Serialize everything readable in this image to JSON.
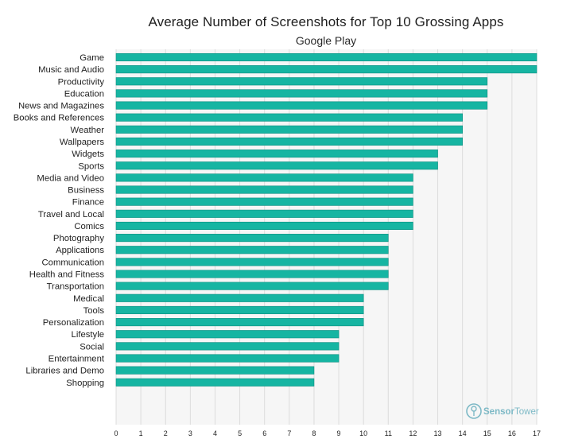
{
  "chart_data": {
    "type": "bar",
    "orientation": "horizontal",
    "title": "Average Number of Screenshots for Top 10 Grossing Apps",
    "subtitle": "Google Play",
    "categories": [
      "Game",
      "Music and Audio",
      "Productivity",
      "Education",
      "News and Magazines",
      "Books and References",
      "Weather",
      "Wallpapers",
      "Widgets",
      "Sports",
      "Media and Video",
      "Business",
      "Finance",
      "Travel and Local",
      "Comics",
      "Photography",
      "Applications",
      "Communication",
      "Health and Fitness",
      "Transportation",
      "Medical",
      "Tools",
      "Personalization",
      "Lifestyle",
      "Social",
      "Entertainment",
      "Libraries and Demo",
      "Shopping"
    ],
    "values": [
      17,
      17,
      15,
      15,
      15,
      14,
      14,
      14,
      13,
      13,
      12,
      12,
      12,
      12,
      12,
      11,
      11,
      11,
      11,
      11,
      10,
      10,
      10,
      9,
      9,
      9,
      8,
      8
    ],
    "xlim": [
      0,
      17
    ],
    "xticks": [
      0,
      1,
      2,
      3,
      4,
      5,
      6,
      7,
      8,
      9,
      10,
      11,
      12,
      13,
      14,
      15,
      16,
      17
    ],
    "xlabel": "",
    "ylabel": "",
    "grid": "vertical",
    "bar_color": "#16b5a2",
    "bar_edge_color": "#0b8f80",
    "grid_color": "#dcdcdc",
    "plot_bg_color": "#f6f6f6"
  },
  "watermark": {
    "brand_part1": "Sensor",
    "brand_part2": "Tower",
    "icon": "sensor-tower-logo-icon",
    "color": "#7db9c6"
  }
}
